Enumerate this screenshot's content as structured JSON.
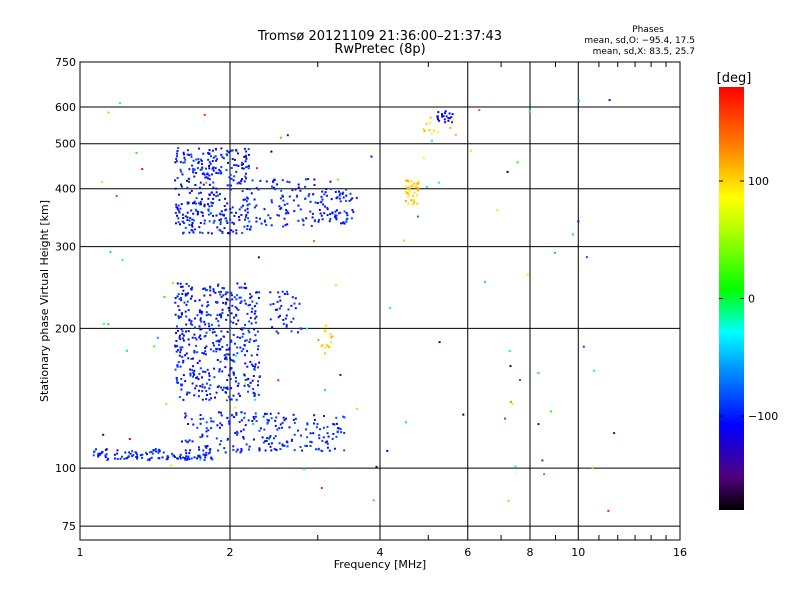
{
  "chart_data": {
    "type": "scatter",
    "title": "Tromsø 20121109 21:36:00–21:37:43",
    "subtitle": "RwPretec (8p)",
    "xlabel": "Frequency [MHz]",
    "ylabel": "Stationary phase Virtual Height [km]",
    "x_scale": "log",
    "y_scale": "log",
    "xlim": [
      1,
      16
    ],
    "ylim": [
      70,
      750
    ],
    "x_ticks": [
      "1",
      "2",
      "4",
      "6",
      "8",
      "10",
      "16"
    ],
    "y_ticks": [
      "75",
      "100",
      "200",
      "300",
      "400",
      "500",
      "600",
      "750"
    ],
    "grid": true,
    "info": {
      "heading": "Phases",
      "line_o": "mean, sd,O: −95.4, 17.5",
      "line_x": "mean, sd,X:  83.5, 25.7"
    },
    "colorbar": {
      "label": "[deg]",
      "range": [
        -180,
        180
      ],
      "ticks": [
        "100",
        "0",
        "−100"
      ]
    },
    "clusters": [
      {
        "x": [
          1.06,
          1.5
        ],
        "y": [
          104,
          110
        ],
        "phase": [
          -110,
          -80
        ],
        "n": 75
      },
      {
        "x": [
          1.5,
          1.85
        ],
        "y": [
          104,
          108
        ],
        "phase": [
          -110,
          -85
        ],
        "n": 40
      },
      {
        "x": [
          1.6,
          3.4
        ],
        "y": [
          108,
          132
        ],
        "phase": [
          -115,
          -80
        ],
        "n": 220
      },
      {
        "x": [
          1.55,
          2.3
        ],
        "y": [
          140,
          250
        ],
        "phase": [
          -120,
          -80
        ],
        "n": 450
      },
      {
        "x": [
          2.4,
          2.8
        ],
        "y": [
          195,
          240
        ],
        "phase": [
          -110,
          -85
        ],
        "n": 40
      },
      {
        "x": [
          3.0,
          3.25
        ],
        "y": [
          175,
          205
        ],
        "phase": [
          90,
          120
        ],
        "n": 16
      },
      {
        "x": [
          1.55,
          2.2
        ],
        "y": [
          320,
          490
        ],
        "phase": [
          -120,
          -80
        ],
        "n": 340
      },
      {
        "x": [
          2.2,
          3.0
        ],
        "y": [
          330,
          420
        ],
        "phase": [
          -110,
          -85
        ],
        "n": 90
      },
      {
        "x": [
          3.0,
          3.6
        ],
        "y": [
          335,
          400
        ],
        "phase": [
          -115,
          -80
        ],
        "n": 70
      },
      {
        "x": [
          4.5,
          4.8
        ],
        "y": [
          370,
          420
        ],
        "phase": [
          90,
          120
        ],
        "n": 40
      },
      {
        "x": [
          5.2,
          5.6
        ],
        "y": [
          555,
          590
        ],
        "phase": [
          -120,
          -90
        ],
        "n": 22
      },
      {
        "x": [
          4.8,
          5.7
        ],
        "y": [
          520,
          580
        ],
        "phase": [
          80,
          130
        ],
        "n": 12
      },
      {
        "x": [
          1.05,
          12.5
        ],
        "y": [
          76,
          640
        ],
        "phase": [
          -180,
          180
        ],
        "n": 95
      }
    ]
  }
}
